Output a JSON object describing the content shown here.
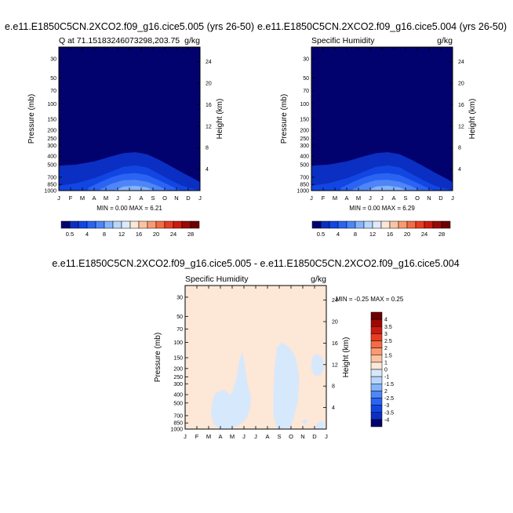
{
  "chart_data": [
    {
      "type": "heatmap",
      "title": "e.e11.E1850C5CN.2XCO2.f09_g16.cice5.005 (yrs 26-50)",
      "subtitle_left": "Q at 71.15183246073298,203.75",
      "subtitle_right": "g/kg",
      "ylabel": "Pressure (mb)",
      "ylabel_right": "Height (km)",
      "x_ticks": [
        "J",
        "F",
        "M",
        "A",
        "M",
        "J",
        "J",
        "A",
        "S",
        "O",
        "N",
        "D",
        "J"
      ],
      "y_ticks": [
        "30",
        "50",
        "70",
        "100",
        "150",
        "200",
        "250",
        "300",
        "400",
        "500",
        "700",
        "850",
        "1000"
      ],
      "y2_ticks": [
        "24",
        "20",
        "16",
        "12",
        "8",
        "4"
      ],
      "ylim": [
        1000,
        22
      ],
      "minmax_text": "MIN =   0.00 MAX =   6.21",
      "contour_levels": [
        0.5,
        1,
        1.5,
        2,
        2.5,
        3,
        3.5,
        4
      ],
      "colorbar_labels": [
        "0.5",
        "4",
        "8",
        "12",
        "16",
        "20",
        "24",
        "28"
      ]
    },
    {
      "type": "heatmap",
      "title": "e.e11.E1850C5CN.2XCO2.f09_g16.cice5.004 (yrs 26-50)",
      "subtitle_left": "Specific Humidity",
      "subtitle_right": "g/kg",
      "ylabel": "Pressure (mb)",
      "ylabel_right": "Height (km)",
      "x_ticks": [
        "J",
        "F",
        "M",
        "A",
        "M",
        "J",
        "J",
        "A",
        "S",
        "O",
        "N",
        "D",
        "J"
      ],
      "y_ticks": [
        "30",
        "50",
        "70",
        "100",
        "150",
        "200",
        "250",
        "300",
        "400",
        "500",
        "700",
        "850",
        "1000"
      ],
      "y2_ticks": [
        "24",
        "20",
        "16",
        "12",
        "8",
        "4"
      ],
      "ylim": [
        1000,
        22
      ],
      "minmax_text": "MIN =   0.00 MAX =   6.29",
      "contour_levels": [
        0.5,
        1,
        1.5,
        2,
        2.5,
        3,
        3.5,
        4
      ],
      "colorbar_labels": [
        "0.5",
        "4",
        "8",
        "12",
        "16",
        "20",
        "24",
        "28"
      ]
    },
    {
      "type": "heatmap",
      "title": "e.e11.E1850C5CN.2XCO2.f09_g16.cice5.005 - e.e11.E1850C5CN.2XCO2.f09_g16.cice5.004",
      "subtitle_left": "Specific Humidity",
      "subtitle_right": "g/kg",
      "ylabel": "Pressure (mb)",
      "ylabel_right": "Height (km)",
      "x_ticks": [
        "J",
        "F",
        "M",
        "A",
        "M",
        "J",
        "J",
        "A",
        "S",
        "O",
        "N",
        "D",
        "J"
      ],
      "y_ticks": [
        "30",
        "50",
        "70",
        "100",
        "150",
        "200",
        "250",
        "300",
        "400",
        "500",
        "700",
        "850",
        "1000"
      ],
      "y2_ticks": [
        "24",
        "20",
        "16",
        "12",
        "8",
        "4"
      ],
      "ylim": [
        1000,
        22
      ],
      "minmax_text": "MIN =  -0.25 MAX =   0.25",
      "colorbar_labels": [
        "4",
        "3.5",
        "3",
        "2.5",
        "2",
        "1.5",
        "1",
        "0",
        "-1",
        "-1.5",
        "2",
        "-2.5",
        "-3",
        "-3.5",
        "-4"
      ],
      "regions": [
        {
          "value_range": [
            0,
            1
          ],
          "label": "positive (background)"
        },
        {
          "value_range": [
            -1,
            0
          ],
          "label": "negative patches: Mar-Jun mid-troposphere, Aug-Oct deep column, Dec upper level"
        }
      ]
    }
  ],
  "colors": {
    "seq_colorbar": [
      "#02026e",
      "#0a2fc2",
      "#1146e2",
      "#2b64f2",
      "#4f86f7",
      "#86b4fa",
      "#b8d6fc",
      "#ddeafe",
      "#fde7d6",
      "#fbc3a3",
      "#f99a72",
      "#f46b45",
      "#e73d22",
      "#cb1b10",
      "#9b0905",
      "#6e0000"
    ],
    "div_colorbar": [
      "#6e0000",
      "#9b0905",
      "#cb1b10",
      "#e73d22",
      "#f46b45",
      "#f99a72",
      "#fbc3a3",
      "#fde7d6",
      "#d6e8fc",
      "#b8d6fc",
      "#86b4fa",
      "#4f86f7",
      "#2b64f2",
      "#1146e2",
      "#0a2fc2",
      "#02026e"
    ],
    "q_fill": [
      "#02026e",
      "#0a2fc2",
      "#1146e2",
      "#2b64f2",
      "#4f86f7",
      "#86b4fa"
    ],
    "diff_background": "#fde7d6",
    "diff_negative": "#d6e8fc"
  }
}
